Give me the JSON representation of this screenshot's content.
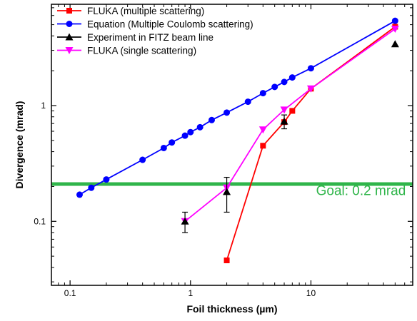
{
  "chart_data": {
    "type": "line",
    "xlabel": "Foil thickness (µm)",
    "ylabel": "Divergence (mrad)",
    "xscale": "log",
    "yscale": "log",
    "xlim": [
      0.07,
      70
    ],
    "ylim": [
      0.028,
      7.5
    ],
    "x_ticks": [
      0.1,
      1,
      10
    ],
    "x_tick_labels": [
      "0.1",
      "1",
      "10"
    ],
    "y_ticks": [
      0.1,
      1
    ],
    "y_tick_labels": [
      "0.1",
      "1"
    ],
    "grid": false,
    "legend_position": "top-left",
    "series": [
      {
        "name": "FLUKA (multiple scattering)",
        "color": "#ff0000",
        "marker": "square",
        "x": [
          2,
          4,
          6,
          7,
          10,
          50
        ],
        "y": [
          0.046,
          0.45,
          0.72,
          0.9,
          1.4,
          4.8
        ]
      },
      {
        "name": "Equation (Multiple Coulomb scattering)",
        "color": "#0000ff",
        "marker": "circle",
        "x": [
          0.12,
          0.15,
          0.2,
          0.4,
          0.6,
          0.7,
          0.9,
          1.0,
          1.2,
          1.5,
          2.0,
          3.0,
          4.0,
          5.0,
          6.0,
          7.0,
          10.0,
          50.0
        ],
        "y": [
          0.17,
          0.195,
          0.23,
          0.34,
          0.43,
          0.48,
          0.55,
          0.59,
          0.65,
          0.75,
          0.87,
          1.08,
          1.28,
          1.45,
          1.6,
          1.75,
          2.1,
          5.4
        ]
      },
      {
        "name": "Experiment in FITZ beam line",
        "color": "#000000",
        "marker": "triangle-up",
        "x": [
          0.9,
          2,
          6,
          50
        ],
        "y": [
          0.1,
          0.18,
          0.73,
          3.4
        ],
        "yerr_low": [
          0.08,
          0.12,
          0.63,
          null
        ],
        "yerr_high": [
          0.12,
          0.24,
          0.83,
          null
        ]
      },
      {
        "name": "FLUKA (single scattering)",
        "color": "#ff00ff",
        "marker": "triangle-down",
        "x": [
          0.9,
          2,
          4,
          6,
          10,
          50
        ],
        "y": [
          0.1,
          0.195,
          0.62,
          0.92,
          1.4,
          4.6
        ]
      }
    ],
    "reference_line": {
      "y": 0.21,
      "color": "#2fb54a"
    },
    "annotation": {
      "text": "Goal: 0.2 mrad",
      "color": "#2fb54a",
      "x": 26,
      "y": 0.168
    }
  }
}
